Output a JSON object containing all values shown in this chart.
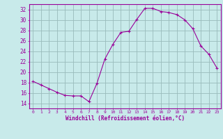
{
  "x": [
    0,
    1,
    2,
    3,
    4,
    5,
    6,
    7,
    8,
    9,
    10,
    11,
    12,
    13,
    14,
    15,
    16,
    17,
    18,
    19,
    20,
    21,
    22,
    23
  ],
  "y": [
    18.2,
    17.5,
    16.8,
    16.1,
    15.5,
    15.4,
    15.4,
    14.3,
    17.8,
    22.5,
    25.3,
    27.6,
    27.8,
    30.1,
    32.2,
    32.2,
    31.6,
    31.4,
    31.0,
    30.0,
    28.3,
    25.0,
    23.4,
    20.8
  ],
  "line_color": "#990099",
  "marker": "+",
  "bg_color": "#c8eaea",
  "grid_color": "#99bbbb",
  "xlabel": "Windchill (Refroidissement éolien,°C)",
  "xlabel_color": "#990099",
  "yticks": [
    14,
    16,
    18,
    20,
    22,
    24,
    26,
    28,
    30,
    32
  ],
  "xticks": [
    0,
    1,
    2,
    3,
    4,
    5,
    6,
    7,
    8,
    9,
    10,
    11,
    12,
    13,
    14,
    15,
    16,
    17,
    18,
    19,
    20,
    21,
    22,
    23
  ],
  "ylim": [
    13.0,
    33.0
  ],
  "xlim": [
    -0.5,
    23.5
  ],
  "tick_color": "#990099",
  "spine_color": "#990099"
}
